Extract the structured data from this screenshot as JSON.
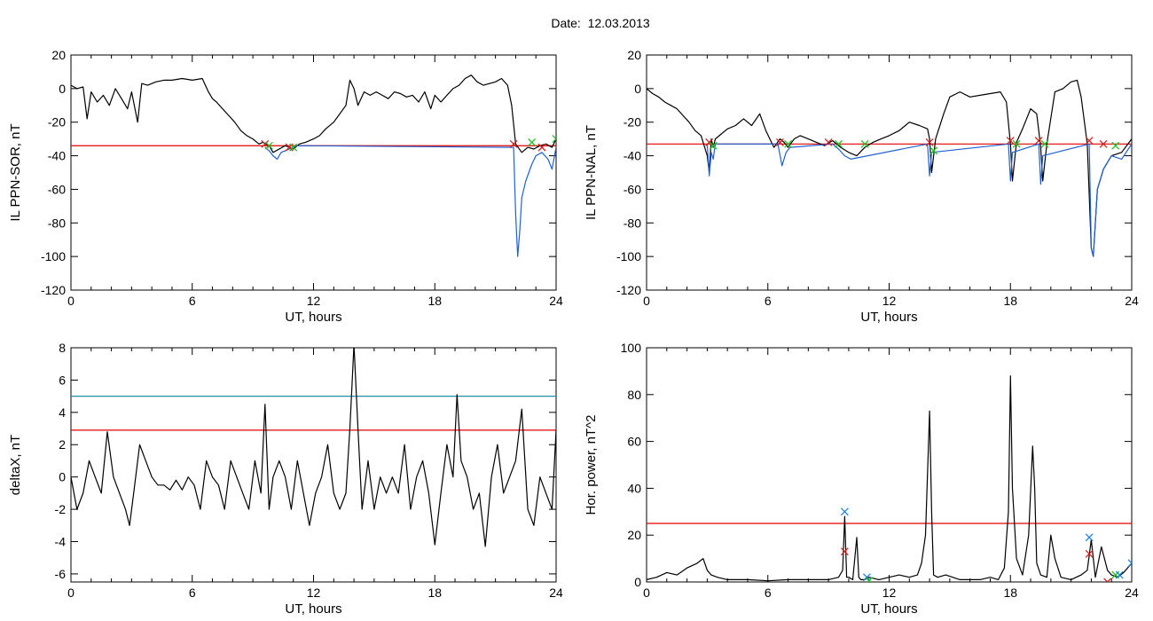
{
  "page": {
    "title": "Date:  12.03.2013"
  },
  "colors": {
    "line": "#000000",
    "red": "#e00000",
    "cyan": "#1f8fa6",
    "blue": "#1f5fd0",
    "green": "#20c020",
    "markerRed": "#d02020",
    "markerBlue": "#2080e0"
  },
  "chart_data": [
    {
      "type": "line",
      "title": "",
      "xlabel": "UT, hours",
      "ylabel": "IL PPN-SOR, nT",
      "xlim": [
        0,
        24
      ],
      "ylim": [
        -120,
        20
      ],
      "xticks": [
        0,
        6,
        12,
        18,
        24
      ],
      "yticks": [
        -120,
        -100,
        -80,
        -60,
        -40,
        -20,
        0,
        20
      ],
      "hlines": [
        {
          "y": -34,
          "color": "red"
        }
      ],
      "series": [
        {
          "color": "black",
          "x": [
            0,
            0.3,
            0.6,
            0.8,
            1,
            1.3,
            1.6,
            1.9,
            2.2,
            2.5,
            2.8,
            3.0,
            3.3,
            3.5,
            3.8,
            4.2,
            4.6,
            5.0,
            5.5,
            6.0,
            6.5,
            6.8,
            7.0,
            7.2,
            7.5,
            7.8,
            8.1,
            8.4,
            8.7,
            9.0,
            9.3,
            9.5,
            9.8,
            10.0,
            10.3,
            10.6,
            11.0,
            11.3,
            11.6,
            12.0,
            12.3,
            12.6,
            13.0,
            13.3,
            13.6,
            13.8,
            14.0,
            14.2,
            14.5,
            14.8,
            15.1,
            15.4,
            15.7,
            16.0,
            16.3,
            16.6,
            16.9,
            17.2,
            17.5,
            17.8,
            18.0,
            18.3,
            18.6,
            18.9,
            19.2,
            19.5,
            19.8,
            20.1,
            20.4,
            20.7,
            21.0,
            21.3,
            21.6,
            21.8,
            22.0,
            22.3,
            22.6,
            22.9,
            23.2,
            23.5,
            23.8,
            24.0
          ],
          "y": [
            2,
            0,
            1,
            -18,
            -2,
            -8,
            -4,
            -10,
            0,
            -6,
            -12,
            -2,
            -20,
            3,
            2,
            4,
            5,
            5,
            6,
            5,
            6,
            -2,
            -6,
            -8,
            -12,
            -16,
            -20,
            -25,
            -28,
            -30,
            -33,
            -32,
            -34,
            -38,
            -36,
            -34,
            -36,
            -33,
            -32,
            -30,
            -28,
            -24,
            -20,
            -15,
            -10,
            5,
            0,
            -10,
            -2,
            -4,
            -2,
            -4,
            -6,
            -2,
            -3,
            -5,
            -4,
            -8,
            -2,
            -12,
            -4,
            -8,
            -4,
            0,
            2,
            6,
            8,
            4,
            2,
            3,
            4,
            6,
            2,
            -10,
            -33,
            -38,
            -35,
            -36,
            -34,
            -33,
            -35,
            -30
          ]
        },
        {
          "color": "blue",
          "x": [
            9.6,
            9.8,
            10.0,
            10.2,
            10.4,
            10.6,
            10.8,
            11.0,
            11.2,
            21.9,
            22.0,
            22.1,
            22.2,
            22.3,
            22.5,
            22.8,
            23.0,
            23.3,
            23.6,
            23.8,
            24.0
          ],
          "y": [
            -35,
            -37,
            -40,
            -42,
            -38,
            -37,
            -36,
            -35,
            -34,
            -35,
            -75,
            -100,
            -85,
            -65,
            -55,
            -45,
            -40,
            -38,
            -42,
            -48,
            -35
          ]
        }
      ],
      "markers": [
        {
          "x": 9.6,
          "y": -33,
          "color": "red"
        },
        {
          "x": 9.8,
          "y": -34,
          "color": "green"
        },
        {
          "x": 10.8,
          "y": -35,
          "color": "red"
        },
        {
          "x": 11.0,
          "y": -35,
          "color": "green"
        },
        {
          "x": 21.9,
          "y": -33,
          "color": "red"
        },
        {
          "x": 22.8,
          "y": -32,
          "color": "green"
        },
        {
          "x": 23.3,
          "y": -35,
          "color": "red"
        },
        {
          "x": 24.0,
          "y": -30,
          "color": "green"
        }
      ]
    },
    {
      "type": "line",
      "title": "",
      "xlabel": "UT, hours",
      "ylabel": "IL PPN-NAL, nT",
      "xlim": [
        0,
        24
      ],
      "ylim": [
        -120,
        20
      ],
      "xticks": [
        0,
        6,
        12,
        18,
        24
      ],
      "yticks": [
        -120,
        -100,
        -80,
        -60,
        -40,
        -20,
        0,
        20
      ],
      "hlines": [
        {
          "y": -33,
          "color": "red"
        }
      ],
      "series": [
        {
          "color": "black",
          "x": [
            0,
            0.3,
            0.6,
            0.9,
            1.2,
            1.5,
            1.8,
            2.1,
            2.4,
            2.7,
            3.0,
            3.1,
            3.2,
            3.3,
            3.4,
            3.6,
            4.0,
            4.4,
            4.8,
            5.2,
            5.6,
            5.9,
            6.1,
            6.3,
            6.6,
            6.8,
            7.0,
            7.3,
            7.6,
            8.0,
            8.4,
            8.8,
            9.2,
            9.6,
            10.0,
            10.4,
            10.8,
            11.2,
            11.6,
            12.0,
            12.5,
            13.0,
            13.5,
            13.9,
            14.0,
            14.1,
            14.3,
            14.7,
            15.0,
            15.5,
            16.0,
            16.5,
            17.0,
            17.5,
            17.8,
            18.0,
            18.1,
            18.3,
            18.6,
            19.0,
            19.3,
            19.5,
            19.6,
            19.8,
            20.2,
            20.6,
            21.0,
            21.3,
            21.5,
            21.8,
            22.0,
            22.1,
            22.3,
            22.6,
            23.0,
            23.5,
            24.0
          ],
          "y": [
            0,
            -3,
            -5,
            -8,
            -10,
            -12,
            -16,
            -20,
            -25,
            -28,
            -40,
            -50,
            -30,
            -35,
            -30,
            -28,
            -24,
            -22,
            -18,
            -22,
            -15,
            -25,
            -30,
            -35,
            -30,
            -32,
            -35,
            -30,
            -28,
            -30,
            -32,
            -34,
            -31,
            -35,
            -38,
            -40,
            -35,
            -32,
            -30,
            -28,
            -25,
            -20,
            -22,
            -24,
            -30,
            -50,
            -30,
            -15,
            -5,
            -2,
            -5,
            -4,
            -3,
            -2,
            -8,
            -33,
            -55,
            -32,
            -24,
            -12,
            -15,
            -35,
            -55,
            -33,
            -2,
            0,
            4,
            5,
            -5,
            -33,
            -95,
            -100,
            -60,
            -48,
            -40,
            -38,
            -30
          ]
        },
        {
          "color": "blue",
          "x": [
            3.0,
            3.1,
            3.2,
            3.3,
            3.4,
            6.5,
            6.7,
            6.9,
            7.1,
            9.2,
            9.5,
            9.8,
            10.1,
            13.9,
            14.0,
            14.1,
            17.9,
            18.0,
            18.1,
            19.4,
            19.5,
            19.6,
            21.9,
            22.0,
            22.1,
            22.3,
            22.6,
            23.0,
            23.5,
            24.0
          ],
          "y": [
            -33,
            -52,
            -38,
            -42,
            -33,
            -33,
            -46,
            -38,
            -35,
            -33,
            -36,
            -40,
            -42,
            -33,
            -52,
            -38,
            -33,
            -55,
            -38,
            -33,
            -57,
            -40,
            -33,
            -95,
            -100,
            -60,
            -48,
            -40,
            -42,
            -33
          ]
        }
      ],
      "markers": [
        {
          "x": 3.1,
          "y": -32,
          "color": "red"
        },
        {
          "x": 3.3,
          "y": -34,
          "color": "green"
        },
        {
          "x": 6.6,
          "y": -32,
          "color": "red"
        },
        {
          "x": 7.0,
          "y": -33,
          "color": "green"
        },
        {
          "x": 9.0,
          "y": -32,
          "color": "red"
        },
        {
          "x": 9.5,
          "y": -33,
          "color": "green"
        },
        {
          "x": 10.8,
          "y": -33,
          "color": "green"
        },
        {
          "x": 14.0,
          "y": -32,
          "color": "red"
        },
        {
          "x": 14.2,
          "y": -37,
          "color": "green"
        },
        {
          "x": 18.0,
          "y": -31,
          "color": "red"
        },
        {
          "x": 18.3,
          "y": -33,
          "color": "green"
        },
        {
          "x": 19.4,
          "y": -31,
          "color": "red"
        },
        {
          "x": 19.7,
          "y": -33,
          "color": "green"
        },
        {
          "x": 21.9,
          "y": -31,
          "color": "red"
        },
        {
          "x": 22.6,
          "y": -33,
          "color": "red"
        },
        {
          "x": 23.2,
          "y": -34,
          "color": "green"
        }
      ]
    },
    {
      "type": "line",
      "title": "",
      "xlabel": "UT, hours",
      "ylabel": "deltaX, nT",
      "xlim": [
        0,
        24
      ],
      "ylim": [
        -6.5,
        8
      ],
      "xticks": [
        0,
        6,
        12,
        18,
        24
      ],
      "yticks": [
        -6,
        -4,
        -2,
        0,
        2,
        4,
        6,
        8
      ],
      "hlines": [
        {
          "y": 5.0,
          "color": "cyan"
        },
        {
          "y": 2.9,
          "color": "red"
        }
      ],
      "series": [
        {
          "color": "black",
          "x": [
            0,
            0.3,
            0.6,
            0.9,
            1.2,
            1.5,
            1.8,
            2.1,
            2.4,
            2.7,
            2.9,
            3.1,
            3.4,
            3.7,
            4.0,
            4.3,
            4.6,
            4.9,
            5.2,
            5.5,
            5.8,
            6.1,
            6.4,
            6.7,
            7.0,
            7.3,
            7.6,
            7.9,
            8.2,
            8.5,
            8.8,
            9.1,
            9.4,
            9.6,
            9.8,
            10.0,
            10.3,
            10.6,
            10.9,
            11.2,
            11.5,
            11.8,
            12.1,
            12.4,
            12.7,
            13.0,
            13.3,
            13.6,
            13.8,
            14.0,
            14.2,
            14.4,
            14.7,
            15.0,
            15.3,
            15.6,
            15.9,
            16.2,
            16.5,
            16.8,
            17.1,
            17.4,
            17.7,
            18.0,
            18.3,
            18.6,
            18.9,
            19.1,
            19.3,
            19.6,
            19.9,
            20.2,
            20.5,
            20.8,
            21.1,
            21.4,
            21.7,
            22.0,
            22.3,
            22.6,
            22.9,
            23.2,
            23.5,
            23.8,
            24.0
          ],
          "y": [
            0,
            -2,
            -1,
            1,
            0,
            -1,
            2.8,
            0,
            -1,
            -2,
            -3,
            -1,
            2,
            1,
            0,
            -0.5,
            -0.5,
            -0.8,
            -0.2,
            -0.8,
            0,
            -0.5,
            -2,
            1,
            0,
            -0.5,
            -2,
            1,
            0,
            -1,
            -2,
            1,
            -1,
            4.5,
            -2,
            0,
            1,
            0,
            -2,
            1,
            -1,
            -3,
            -1,
            0,
            2,
            -1,
            -2,
            -1,
            3,
            8.2,
            3,
            -2,
            1,
            -2,
            0,
            -1,
            0,
            -1,
            2,
            -2,
            0,
            1,
            -1,
            -4.2,
            -1,
            2,
            0,
            5.1,
            1,
            0,
            -2,
            -1,
            -4.3,
            0,
            2,
            -1,
            0,
            1,
            4.2,
            -2,
            -3,
            0,
            -1,
            -2,
            2.9
          ]
        }
      ],
      "markers": []
    },
    {
      "type": "line",
      "title": "",
      "xlabel": "UT, hours",
      "ylabel": "Hor. power, nT^2",
      "xlim": [
        0,
        24
      ],
      "ylim": [
        0,
        100
      ],
      "xticks": [
        0,
        6,
        12,
        18,
        24
      ],
      "yticks": [
        0,
        20,
        40,
        60,
        80,
        100
      ],
      "hlines": [
        {
          "y": 25,
          "color": "red"
        }
      ],
      "series": [
        {
          "color": "black",
          "x": [
            0,
            0.5,
            1.0,
            1.5,
            2.0,
            2.5,
            2.8,
            3.0,
            3.2,
            3.5,
            4.0,
            5.0,
            6.0,
            7.0,
            8.0,
            9.0,
            9.5,
            9.7,
            9.8,
            9.9,
            10.0,
            10.2,
            10.4,
            10.5,
            10.6,
            10.8,
            11.0,
            11.5,
            12.0,
            12.5,
            13.0,
            13.4,
            13.6,
            13.8,
            14.0,
            14.1,
            14.2,
            14.4,
            14.8,
            15.5,
            16.5,
            17.0,
            17.4,
            17.7,
            17.9,
            18.0,
            18.1,
            18.3,
            18.6,
            18.9,
            19.1,
            19.2,
            19.3,
            19.5,
            19.8,
            20.0,
            20.2,
            20.5,
            21.0,
            21.5,
            21.8,
            22.0,
            22.2,
            22.5,
            22.8,
            23.0,
            23.3,
            23.6,
            24.0
          ],
          "y": [
            1,
            2,
            4,
            3,
            6,
            8,
            10,
            5,
            3,
            2,
            1,
            1,
            0.5,
            1,
            1,
            1,
            2,
            5,
            28,
            2,
            2,
            1,
            19,
            2,
            1,
            1,
            2,
            1,
            2,
            3,
            2,
            3,
            8,
            20,
            73,
            30,
            3,
            2,
            3,
            1,
            1,
            2,
            1,
            6,
            30,
            88,
            40,
            10,
            3,
            20,
            58,
            40,
            8,
            3,
            2,
            20,
            10,
            2,
            1,
            3,
            5,
            18,
            2,
            15,
            5,
            3,
            2,
            4,
            8
          ]
        }
      ],
      "markers": [
        {
          "x": 9.8,
          "y": 30,
          "color": "blue"
        },
        {
          "x": 9.8,
          "y": 13,
          "color": "red"
        },
        {
          "x": 10.9,
          "y": 2,
          "color": "blue"
        },
        {
          "x": 11.0,
          "y": 0.5,
          "color": "green"
        },
        {
          "x": 21.9,
          "y": 19,
          "color": "blue"
        },
        {
          "x": 21.9,
          "y": 12,
          "color": "red"
        },
        {
          "x": 22.8,
          "y": 0,
          "color": "red"
        },
        {
          "x": 23.2,
          "y": 3,
          "color": "green"
        },
        {
          "x": 23.4,
          "y": 3,
          "color": "blue"
        },
        {
          "x": 24.0,
          "y": 8,
          "color": "blue"
        }
      ]
    }
  ]
}
